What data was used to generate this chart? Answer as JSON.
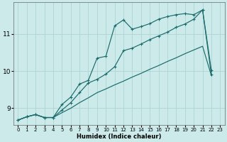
{
  "xlabel": "Humidex (Indice chaleur)",
  "background_color": "#cceaea",
  "grid_color": "#aed4d4",
  "line_color": "#1a6b6b",
  "xlim": [
    -0.5,
    23.5
  ],
  "ylim": [
    8.55,
    11.85
  ],
  "yticks": [
    9,
    10,
    11
  ],
  "xticks": [
    0,
    1,
    2,
    3,
    4,
    5,
    6,
    7,
    8,
    9,
    10,
    11,
    12,
    13,
    14,
    15,
    16,
    17,
    18,
    19,
    20,
    21,
    22,
    23
  ],
  "line1_x": [
    0,
    1,
    2,
    3,
    4,
    5,
    6,
    7,
    8,
    9,
    10,
    11,
    12,
    13,
    14,
    15,
    16,
    17,
    18,
    19,
    20,
    21,
    22
  ],
  "line1_y": [
    8.68,
    8.77,
    8.83,
    8.75,
    8.75,
    9.1,
    9.3,
    9.65,
    9.75,
    10.35,
    10.4,
    11.22,
    11.38,
    11.13,
    11.2,
    11.28,
    11.4,
    11.47,
    11.52,
    11.55,
    11.52,
    11.65,
    10.02
  ],
  "line2_x": [
    0,
    1,
    2,
    3,
    4,
    5,
    6,
    7,
    8,
    9,
    10,
    11,
    12,
    13,
    14,
    15,
    16,
    17,
    18,
    19,
    20,
    21,
    22
  ],
  "line2_y": [
    8.68,
    8.77,
    8.83,
    8.75,
    8.75,
    8.95,
    9.15,
    9.42,
    9.68,
    9.78,
    9.92,
    10.12,
    10.55,
    10.62,
    10.73,
    10.85,
    10.95,
    11.05,
    11.18,
    11.27,
    11.4,
    11.65,
    9.9
  ],
  "line3_x": [
    0,
    1,
    2,
    3,
    4,
    5,
    6,
    7,
    8,
    9,
    10,
    11,
    12,
    13,
    14,
    15,
    16,
    17,
    18,
    19,
    20,
    21,
    22
  ],
  "line3_y": [
    8.68,
    8.77,
    8.83,
    8.75,
    8.75,
    8.88,
    9.0,
    9.15,
    9.28,
    9.42,
    9.52,
    9.63,
    9.73,
    9.84,
    9.94,
    10.05,
    10.15,
    10.26,
    10.36,
    10.47,
    10.57,
    10.67,
    9.88
  ]
}
